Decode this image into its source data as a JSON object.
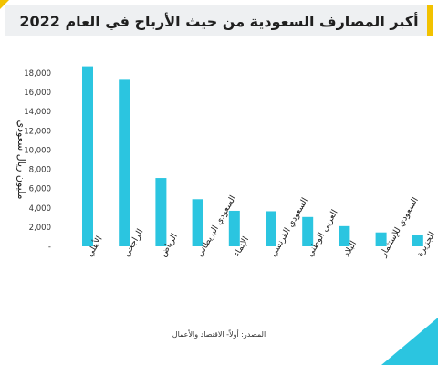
{
  "title": "أكبر المصارف السعودية من حيث الأرباح في العام 2022",
  "source": "المصدر: أولاً- الاقتصاد والأعمال",
  "chart_data": {
    "type": "bar",
    "title": "أكبر المصارف السعودية من حيث الأرباح في العام 2022",
    "ylabel": "مليون ريال سعودي",
    "xlabel": "",
    "ylim": [
      0,
      18000
    ],
    "yticks": [
      0,
      2000,
      4000,
      6000,
      8000,
      10000,
      12000,
      14000,
      16000,
      18000
    ],
    "ytick_labels": [
      "-",
      "2,000",
      "4,000",
      "6,000",
      "8,000",
      "10,000",
      "12,000",
      "14,000",
      "16,000",
      "18,000"
    ],
    "grid": false,
    "bar_color": "#2bc5e0",
    "categories": [
      "الأهلي",
      "الراجحي",
      "الرياض",
      "السعودي البريطاني",
      "الإنماء",
      "السعودي الفرنسي",
      "العربي الوطني",
      "البلاد",
      "السعودي للإستثمار",
      "الجزيرة"
    ],
    "values": [
      18700,
      17300,
      7100,
      4900,
      3700,
      3650,
      3050,
      2100,
      1450,
      1150
    ]
  },
  "colors": {
    "accent_yellow": "#f2c200",
    "accent_cyan": "#2bc5e0",
    "title_bg": "#eef0f2"
  }
}
